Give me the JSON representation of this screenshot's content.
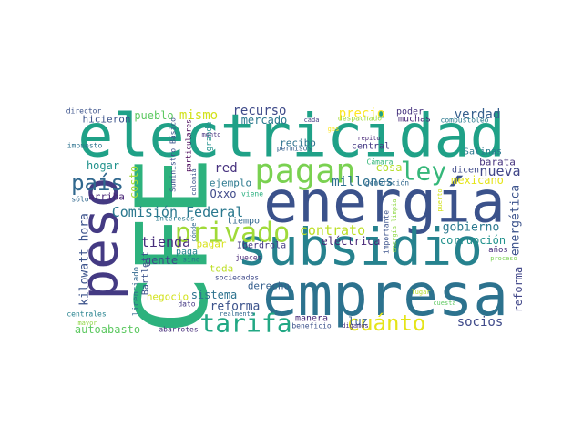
{
  "chart_data": {
    "type": "wordcloud",
    "background": "#ffffff",
    "words": [
      {
        "text": "electricidad",
        "color": "#1fa187"
      },
      {
        "text": "CFE",
        "color": "#2db27d"
      },
      {
        "text": "energía",
        "color": "#3b528b"
      },
      {
        "text": "subsidio",
        "color": "#26828e"
      },
      {
        "text": "empresa",
        "color": "#2c728e"
      },
      {
        "text": "peso",
        "color": "#443a83"
      },
      {
        "text": "pagan",
        "color": "#7ad151"
      },
      {
        "text": "ley",
        "color": "#35b779"
      },
      {
        "text": "país",
        "color": "#31688e"
      },
      {
        "text": "privado",
        "color": "#a0da39"
      },
      {
        "text": "tarifa",
        "color": "#22a884"
      },
      {
        "text": "cuánto",
        "color": "#e5e419"
      },
      {
        "text": "Comisión Federal",
        "color": "#2a788e"
      },
      {
        "text": "contrato",
        "color": "#bddf26"
      },
      {
        "text": "mismo",
        "color": "#d2e21b"
      },
      {
        "text": "recurso",
        "color": "#3e4a89"
      },
      {
        "text": "precio",
        "color": "#fde725"
      },
      {
        "text": "verdad",
        "color": "#355f8d"
      },
      {
        "text": "pueblo",
        "color": "#5ec962"
      },
      {
        "text": "mercado",
        "color": "#2a788e"
      },
      {
        "text": "hicieron",
        "color": "#3b528b"
      },
      {
        "text": "poder",
        "color": "#46337e"
      },
      {
        "text": "muchas",
        "color": "#482878"
      },
      {
        "text": "red",
        "color": "#46307e"
      },
      {
        "text": "hogar",
        "color": "#20928c"
      },
      {
        "text": "costo",
        "color": "#a5db36"
      },
      {
        "text": "recibo",
        "color": "#2c728e"
      },
      {
        "text": "central",
        "color": "#443983"
      },
      {
        "text": "cosa",
        "color": "#b5de2b"
      },
      {
        "text": "nueva",
        "color": "#404688"
      },
      {
        "text": "barata",
        "color": "#46337e"
      },
      {
        "text": "millones",
        "color": "#2d708e"
      },
      {
        "text": "mexicano",
        "color": "#e5e419"
      },
      {
        "text": "ejemplo",
        "color": "#2a788e"
      },
      {
        "text": "Oxxo",
        "color": "#3e4989"
      },
      {
        "text": "viene",
        "color": "#29af7f"
      },
      {
        "text": "arriba",
        "color": "#482475"
      },
      {
        "text": "sólo",
        "color": "#31688e"
      },
      {
        "text": "gobierno",
        "color": "#2a788e"
      },
      {
        "text": "energética",
        "color": "#3b528b"
      },
      {
        "text": "eléctrica",
        "color": "#482878"
      },
      {
        "text": "corrupción",
        "color": "#21918c"
      },
      {
        "text": "años",
        "color": "#472d7b"
      },
      {
        "text": "kilowatt hora",
        "color": "#3b528b"
      },
      {
        "text": "tiempo",
        "color": "#31688e"
      },
      {
        "text": "intereses",
        "color": "#2a788e"
      },
      {
        "text": "tienda",
        "color": "#472d7b"
      },
      {
        "text": "pagar",
        "color": "#d8e219"
      },
      {
        "text": "Iberdrola",
        "color": "#443983"
      },
      {
        "text": "paga",
        "color": "#26828e"
      },
      {
        "text": "toda",
        "color": "#bddf26"
      },
      {
        "text": "gente",
        "color": "#3e4a89"
      },
      {
        "text": "derecho",
        "color": "#355f8d"
      },
      {
        "text": "negocio",
        "color": "#d2e21b"
      },
      {
        "text": "sistema",
        "color": "#2c728e"
      },
      {
        "text": "reforma",
        "color": "#3b528b"
      },
      {
        "text": "reforma",
        "color": "#404688"
      },
      {
        "text": "socios",
        "color": "#3e4989"
      },
      {
        "text": "luz",
        "color": "#355f8d"
      },
      {
        "text": "manera",
        "color": "#482878"
      },
      {
        "text": "beneficio",
        "color": "#3b528b"
      },
      {
        "text": "digamos",
        "color": "#46307e"
      },
      {
        "text": "autoabasto",
        "color": "#5ec962"
      },
      {
        "text": "abarrotes",
        "color": "#472d7b"
      },
      {
        "text": "dato",
        "color": "#443983"
      },
      {
        "text": "licenciado",
        "color": "#31688e"
      },
      {
        "text": "Bartlett",
        "color": "#3b528b"
      },
      {
        "text": "centrales",
        "color": "#26828e"
      },
      {
        "text": "mayor",
        "color": "#8fd744"
      },
      {
        "text": "generación",
        "color": "#31688e"
      },
      {
        "text": "repito",
        "color": "#482878"
      },
      {
        "text": "Cámara",
        "color": "#35b779"
      },
      {
        "text": "Salinas",
        "color": "#2a788e"
      },
      {
        "text": "dicen",
        "color": "#3e4989"
      },
      {
        "text": "Suministro Básico",
        "color": "#3b528b"
      },
      {
        "text": "particulares",
        "color": "#440154"
      },
      {
        "text": "grande",
        "color": "#21918c"
      },
      {
        "text": "monto",
        "color": "#46337e"
      },
      {
        "text": "colonia",
        "color": "#3b528b"
      },
      {
        "text": "impuesto",
        "color": "#2c728e"
      },
      {
        "text": "director",
        "color": "#3b528b"
      },
      {
        "text": "cada",
        "color": "#443983"
      },
      {
        "text": "gas",
        "color": "#fde725"
      },
      {
        "text": "despachado",
        "color": "#a0da39"
      },
      {
        "text": "combustóleo",
        "color": "#2a788e"
      },
      {
        "text": "permisos",
        "color": "#355f8d"
      },
      {
        "text": "sino",
        "color": "#2c728e"
      },
      {
        "text": "sociedades",
        "color": "#3e4989"
      },
      {
        "text": "jueces",
        "color": "#482878"
      },
      {
        "text": "realmente",
        "color": "#31688e"
      },
      {
        "text": "lugar",
        "color": "#b5de2b"
      },
      {
        "text": "cuesta",
        "color": "#5ec962"
      },
      {
        "text": "proceso",
        "color": "#7ad151"
      },
      {
        "text": "puerto",
        "color": "#d2e21b"
      },
      {
        "text": "importante",
        "color": "#3b528b"
      },
      {
        "text": "energía limpia",
        "color": "#8fd744"
      },
      {
        "text": "dónde",
        "color": "#31688e"
      }
    ]
  }
}
